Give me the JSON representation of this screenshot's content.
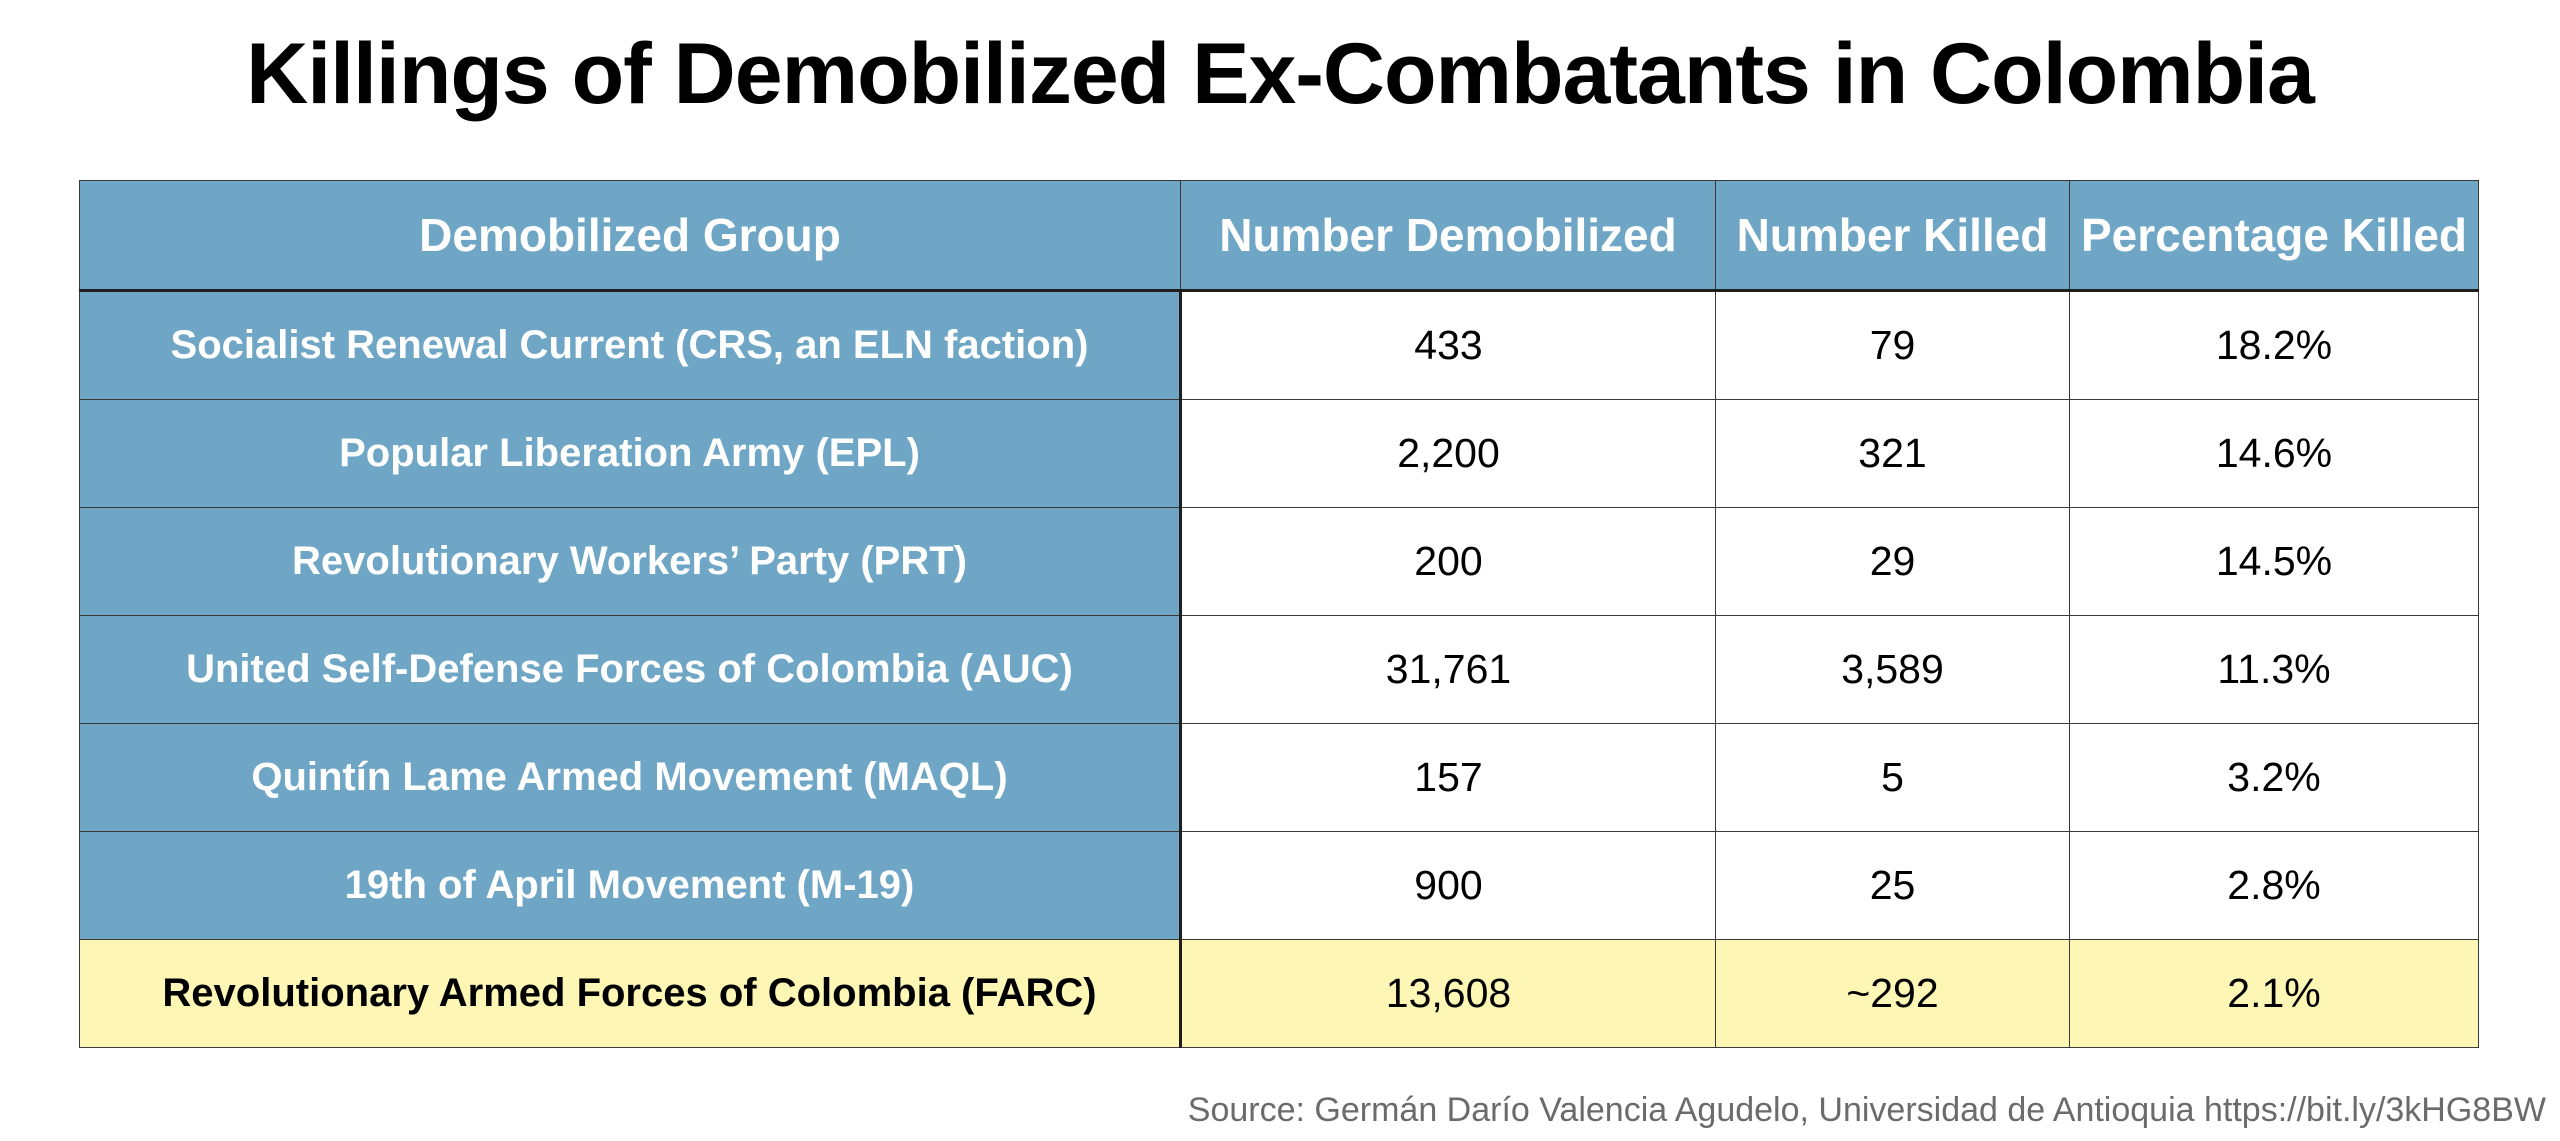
{
  "title": "Killings of Demobilized Ex-Combatants in Colombia",
  "colors": {
    "header_fill": "#6fa6c6",
    "group_fill": "#6fa6c6",
    "highlight_fill": "#fdf6b5",
    "source_text": "#6b6b6b"
  },
  "chart_data": {
    "type": "table",
    "title": "Killings of Demobilized Ex-Combatants in Colombia",
    "columns": [
      "Demobilized Group",
      "Number Demobilized",
      "Number Killed",
      "Percentage Killed"
    ],
    "rows": [
      {
        "group": "Socialist Renewal Current (CRS, an ELN faction)",
        "demobilized": "433",
        "killed": "79",
        "percentage": "18.2%"
      },
      {
        "group": "Popular Liberation Army (EPL)",
        "demobilized": "2,200",
        "killed": "321",
        "percentage": "14.6%"
      },
      {
        "group": "Revolutionary Workers’ Party (PRT)",
        "demobilized": "200",
        "killed": "29",
        "percentage": "14.5%"
      },
      {
        "group": "United Self-Defense Forces of Colombia (AUC)",
        "demobilized": "31,761",
        "killed": "3,589",
        "percentage": "11.3%"
      },
      {
        "group": "Quintín Lame Armed Movement (MAQL)",
        "demobilized": "157",
        "killed": "5",
        "percentage": "3.2%"
      },
      {
        "group": "19th of April Movement (M-19)",
        "demobilized": "900",
        "killed": "25",
        "percentage": "2.8%"
      },
      {
        "group": "Revolutionary Armed Forces of Colombia (FARC)",
        "demobilized": "13,608",
        "killed": "~292",
        "percentage": "2.1%",
        "highlighted": true
      }
    ],
    "source": "Source: Germán Darío Valencia Agudelo, Universidad de Antioquia https://bit.ly/3kHG8BW"
  }
}
